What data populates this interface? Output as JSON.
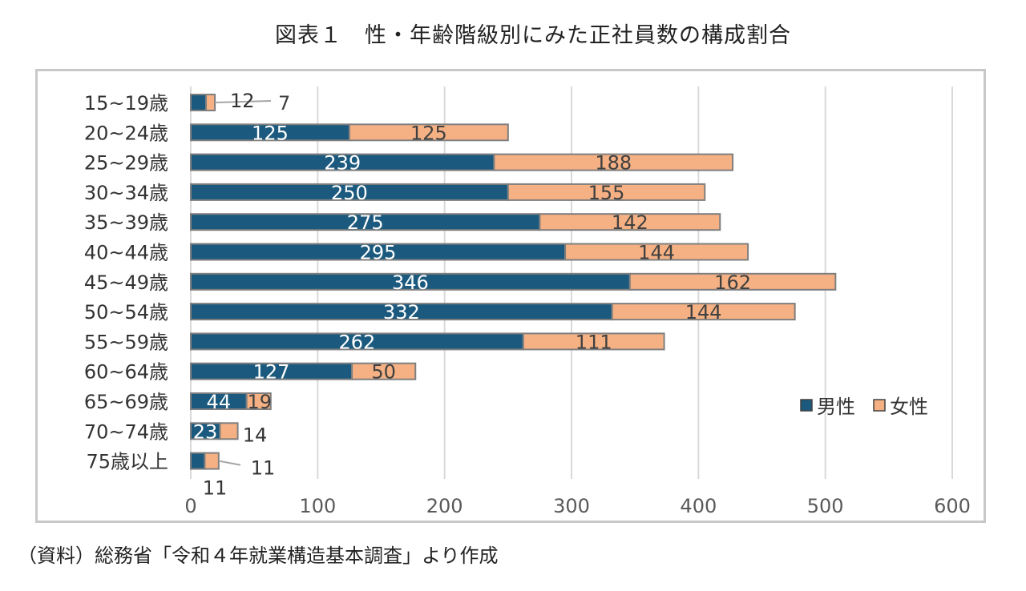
{
  "title": "図表１　性・年齢階級別にみた正社員数の構成割合",
  "source": "（資料）総務省「令和４年就業構造基本調査」より作成",
  "colors": {
    "male": "#1b5a7e",
    "female": "#f5b183",
    "bar_border": "#7f7f7f",
    "grid": "#d9d9d9",
    "male_label": "#ffffff",
    "female_label": "#404040"
  },
  "chart_data": {
    "type": "bar",
    "orientation": "horizontal",
    "stacked": true,
    "categories": [
      "15~19歳",
      "20~24歳",
      "25~29歳",
      "30~34歳",
      "35~39歳",
      "40~44歳",
      "45~49歳",
      "50~54歳",
      "55~59歳",
      "60~64歳",
      "65~69歳",
      "70~74歳",
      "75歳以上"
    ],
    "series": [
      {
        "name": "男性",
        "values": [
          12,
          125,
          239,
          250,
          275,
          295,
          346,
          332,
          262,
          127,
          44,
          23,
          11
        ]
      },
      {
        "name": "女性",
        "values": [
          7,
          125,
          188,
          155,
          142,
          144,
          162,
          144,
          111,
          50,
          19,
          14,
          11
        ]
      }
    ],
    "xlim": [
      0,
      600
    ],
    "xticks": [
      "0",
      "100",
      "200",
      "300",
      "400",
      "500",
      "600"
    ],
    "grid": true,
    "legend": "right"
  }
}
